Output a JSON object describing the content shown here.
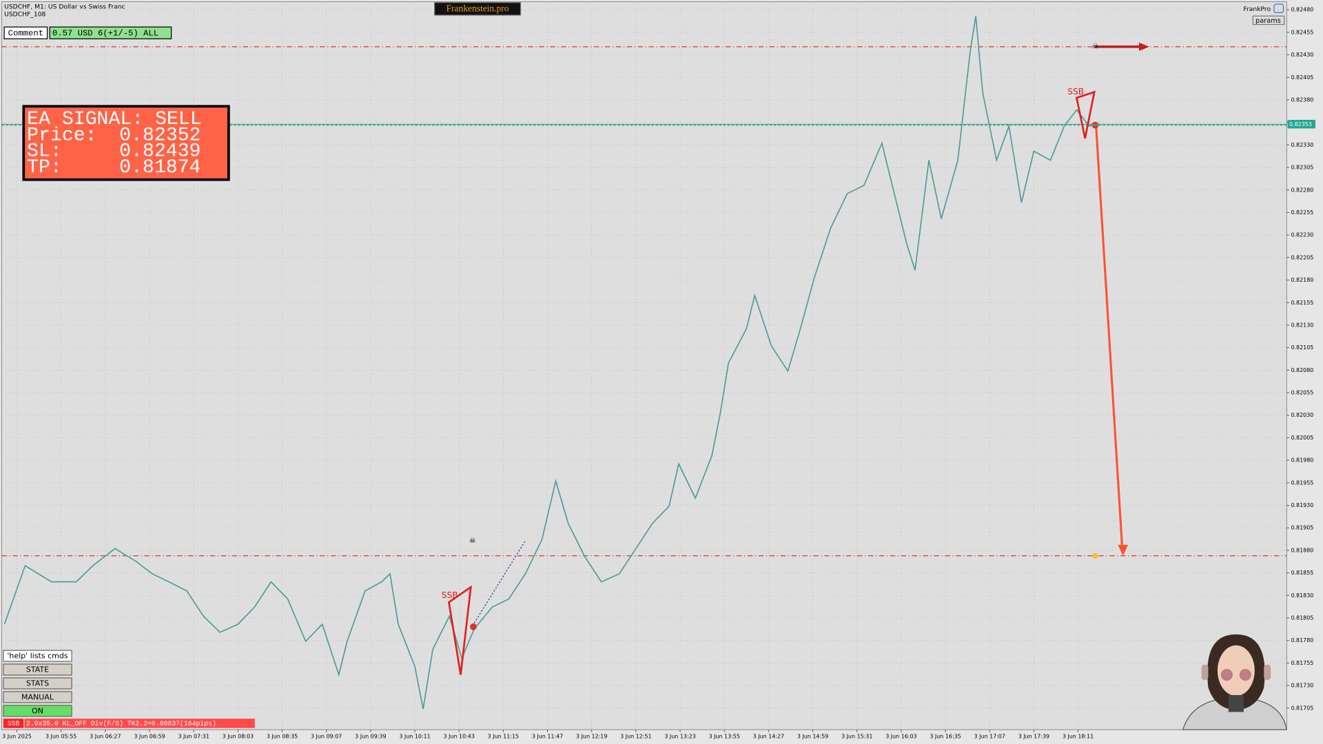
{
  "header": {
    "symbol": "USDCHF, M1:  US Dollar vs Swiss Franc",
    "account": "USDCHF_108",
    "brand": "Frankenstein.pro",
    "user": "FrankPro",
    "params": "params"
  },
  "comment": {
    "label": "Comment",
    "value": "0.57 USD 6(+1/-5) ALL"
  },
  "signal": {
    "title": "EA SIGNAL: SELL",
    "rows": [
      {
        "label": "Price:",
        "value": 0.82352
      },
      {
        "label": "SL:",
        "value": 0.82439
      },
      {
        "label": "TP:",
        "value": 0.81874
      }
    ]
  },
  "buttons": [
    "'help' lists cmds",
    "STATE",
    "STATS",
    "MANUAL",
    "ON"
  ],
  "status": {
    "tag": "SSB",
    "text": "2.0x35.0 KL_OFF Div(F/S) TK2.2=0.80837(164pips)"
  },
  "annotations": [
    "SSB",
    "SSB"
  ],
  "chart_data": {
    "type": "line",
    "current_price": 0.82353,
    "grid": true,
    "series": [
      {
        "color": "#4f9e9a",
        "x": [
          -9,
          6,
          25,
          43,
          55,
          71,
          86,
          98,
          110,
          123,
          135,
          147,
          160,
          172,
          184,
          196,
          209,
          221,
          233,
          239,
          252,
          264,
          270,
          276,
          288,
          294,
          301,
          313,
          322,
          331,
          344,
          356,
          368,
          380,
          390,
          399,
          411,
          423,
          436,
          448,
          460,
          472,
          479,
          491,
          503,
          509,
          515,
          528,
          534,
          546,
          558,
          567,
          577,
          589,
          601,
          613,
          626,
          635,
          644,
          650,
          660,
          669,
          681,
          690,
          694,
          699,
          709,
          718,
          727,
          736,
          748,
          758,
          767,
          776,
          784
        ],
        "values": [
          0.81798,
          0.81863,
          0.81845,
          0.81845,
          0.81863,
          0.81882,
          0.81868,
          0.81854,
          0.81845,
          0.81835,
          0.81807,
          0.81789,
          0.81798,
          0.81817,
          0.81845,
          0.81826,
          0.81779,
          0.81798,
          0.81742,
          0.81779,
          0.81835,
          0.81845,
          0.81854,
          0.81798,
          0.81751,
          0.81704,
          0.8177,
          0.81807,
          0.8176,
          0.81793,
          0.81817,
          0.81826,
          0.81854,
          0.81892,
          0.81957,
          0.8191,
          0.81873,
          0.81845,
          0.81854,
          0.81882,
          0.8191,
          0.81929,
          0.81976,
          0.81938,
          0.81985,
          0.82032,
          0.82088,
          0.82126,
          0.82163,
          0.82107,
          0.82079,
          0.82126,
          0.82182,
          0.82238,
          0.82276,
          0.82285,
          0.82332,
          0.82276,
          0.8222,
          0.82191,
          0.82313,
          0.82248,
          0.82313,
          0.82435,
          0.82473,
          0.82388,
          0.82313,
          0.82351,
          0.82266,
          0.82323,
          0.82313,
          0.82351,
          0.82369,
          0.82351,
          0.82353
        ]
      }
    ],
    "xlim": [
      -11,
      919
    ],
    "xticks": [
      {
        "value": 0,
        "label": "3 Jun 2025"
      },
      {
        "value": 32,
        "label": "3 Jun 05:55"
      },
      {
        "value": 64,
        "label": "3 Jun 06:27"
      },
      {
        "value": 96,
        "label": "3 Jun 06:59"
      },
      {
        "value": 128,
        "label": "3 Jun 07:31"
      },
      {
        "value": 160,
        "label": "3 Jun 08:03"
      },
      {
        "value": 192,
        "label": "3 Jun 08:35"
      },
      {
        "value": 224,
        "label": "3 Jun 09:07"
      },
      {
        "value": 256,
        "label": "3 Jun 09:39"
      },
      {
        "value": 288,
        "label": "3 Jun 10:11"
      },
      {
        "value": 320,
        "label": "3 Jun 10:43"
      },
      {
        "value": 352,
        "label": "3 Jun 11:15"
      },
      {
        "value": 384,
        "label": "3 Jun 11:47"
      },
      {
        "value": 416,
        "label": "3 Jun 12:19"
      },
      {
        "value": 448,
        "label": "3 Jun 12:51"
      },
      {
        "value": 480,
        "label": "3 Jun 13:23"
      },
      {
        "value": 512,
        "label": "3 Jun 13:55"
      },
      {
        "value": 544,
        "label": "3 Jun 14:27"
      },
      {
        "value": 576,
        "label": "3 Jun 14:59"
      },
      {
        "value": 608,
        "label": "3 Jun 15:31"
      },
      {
        "value": 640,
        "label": "3 Jun 16:03"
      },
      {
        "value": 672,
        "label": "3 Jun 16:35"
      },
      {
        "value": 704,
        "label": "3 Jun 17:07"
      },
      {
        "value": 736,
        "label": "3 Jun 17:39"
      },
      {
        "value": 768,
        "label": "3 Jun 18:11"
      }
    ],
    "ylim": [
      0.81681,
      0.82489
    ],
    "yticks": [
      0.81705,
      {
        "value": 0.8173,
        "label": "0.81730"
      },
      0.81755,
      {
        "value": 0.8178,
        "label": "0.81780"
      },
      0.81805,
      {
        "value": 0.8183,
        "label": "0.81830"
      },
      0.81855,
      {
        "value": 0.8188,
        "label": "0.81880"
      },
      0.81905,
      {
        "value": 0.8193,
        "label": "0.81930"
      },
      0.81955,
      {
        "value": 0.8198,
        "label": "0.81980"
      },
      0.82005,
      {
        "value": 0.8203,
        "label": "0.82030"
      },
      0.82055,
      {
        "value": 0.8208,
        "label": "0.82080"
      },
      0.82105,
      {
        "value": 0.8213,
        "label": "0.82130"
      },
      0.82155,
      {
        "value": 0.8218,
        "label": "0.82180"
      },
      0.82205,
      {
        "value": 0.8223,
        "label": "0.82230"
      },
      0.82255,
      {
        "value": 0.8228,
        "label": "0.82280"
      },
      0.82305,
      {
        "value": 0.8233,
        "label": "0.82330"
      },
      0.82355,
      {
        "value": 0.8238,
        "label": "0.82380"
      },
      0.82405,
      {
        "value": 0.8243,
        "label": "0.82430"
      },
      0.82455,
      {
        "value": 0.8248,
        "label": "0.82480"
      }
    ]
  }
}
